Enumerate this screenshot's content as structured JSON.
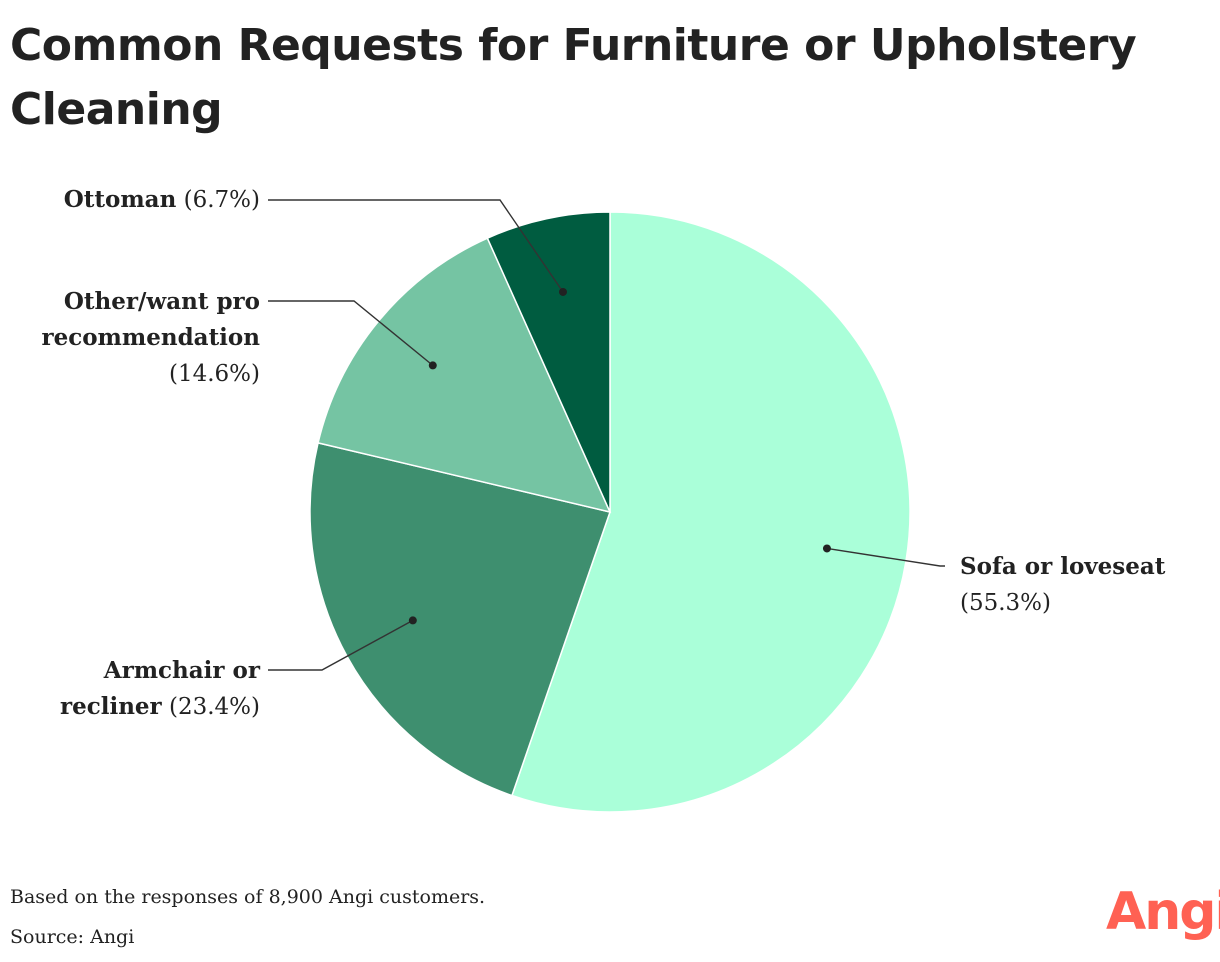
{
  "chart_data": {
    "type": "pie",
    "title": "Common Requests for Furniture or Upholstery Cleaning",
    "slices": [
      {
        "label": "Sofa or loveseat",
        "value": 55.3,
        "value_label": "(55.3%)",
        "color": "#aaffd9"
      },
      {
        "label": "Armchair or recliner",
        "value": 23.4,
        "value_label": "(23.4%)",
        "color": "#3e8f6f"
      },
      {
        "label": "Other/want pro recommendation",
        "value": 14.6,
        "value_label": "(14.6%)",
        "color": "#75c4a3"
      },
      {
        "label": "Ottoman",
        "value": 6.7,
        "value_label": "(6.7%)",
        "color": "#005c40"
      }
    ],
    "label_lines": {
      "armchair": [
        "Armchair or",
        "recliner"
      ],
      "other": [
        "Other/want pro",
        "recommendation"
      ]
    },
    "footnote": "Based on the responses of 8,900 Angi customers.",
    "source": "Source: Angi"
  },
  "logo": {
    "text": "Angi",
    "color": "#ff6153"
  }
}
